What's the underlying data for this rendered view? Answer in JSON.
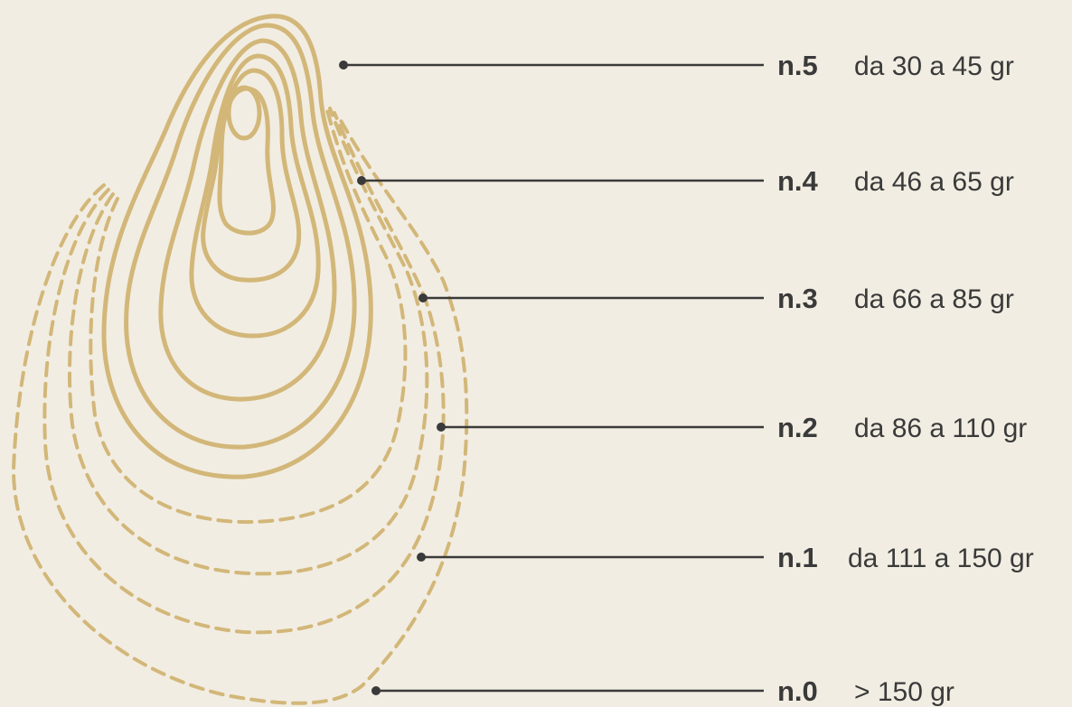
{
  "sizes": [
    {
      "code": "n.5",
      "range": "da 30 a 45 gr"
    },
    {
      "code": "n.4",
      "range": "da 46 a 65 gr"
    },
    {
      "code": "n.3",
      "range": "da 66 a 85 gr"
    },
    {
      "code": "n.2",
      "range": "da 86 a 110 gr"
    },
    {
      "code": "n.1",
      "range": "da 111 a 150 gr"
    },
    {
      "code": "n.0",
      "range": "> 150 gr"
    }
  ]
}
